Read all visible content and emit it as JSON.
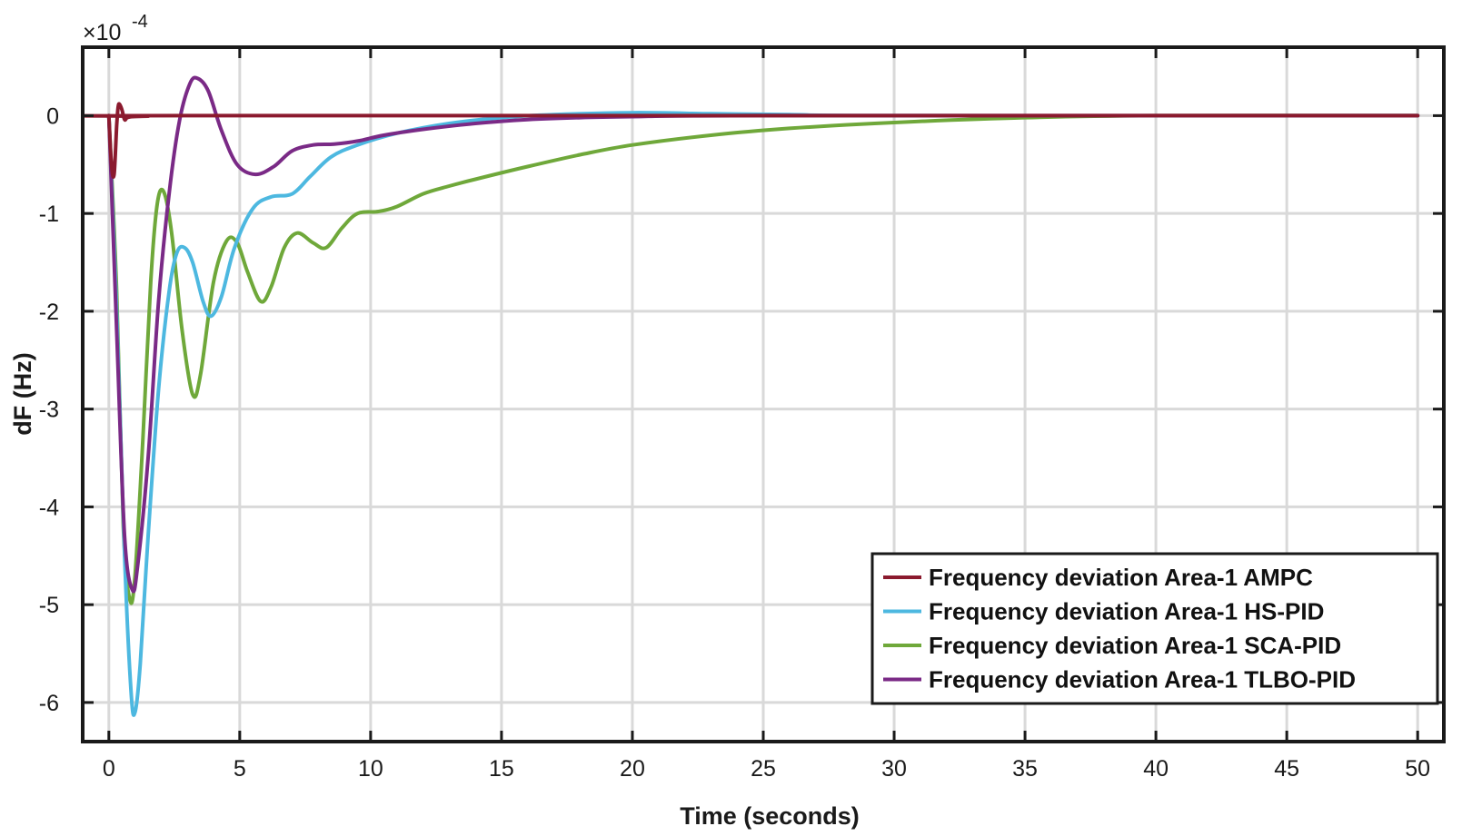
{
  "chart_data": {
    "type": "line",
    "xlabel": "Time (seconds)",
    "ylabel": "dF (Hz)",
    "y_exponent_prefix": "×10",
    "y_exponent": "-4",
    "xlim": [
      -1,
      51
    ],
    "ylim": [
      -6.4,
      0.7
    ],
    "xticks": [
      0,
      5,
      10,
      15,
      20,
      25,
      30,
      35,
      40,
      45,
      50
    ],
    "yticks": [
      0,
      -1,
      -2,
      -3,
      -4,
      -5,
      -6
    ],
    "grid": true,
    "legend_position": "bottom-right",
    "series": [
      {
        "name": "Frequency deviation Area-1 AMPC",
        "color": "#8b1a2e",
        "points": [
          [
            0,
            0
          ],
          [
            0.1,
            -0.5
          ],
          [
            0.2,
            -0.6
          ],
          [
            0.3,
            -0.1
          ],
          [
            0.35,
            0.08
          ],
          [
            0.4,
            0.12
          ],
          [
            0.5,
            0.06
          ],
          [
            0.6,
            -0.04
          ],
          [
            0.7,
            -0.02
          ],
          [
            0.9,
            -0.01
          ],
          [
            1.5,
            -0.005
          ],
          [
            3,
            0
          ],
          [
            50,
            0
          ]
        ]
      },
      {
        "name": "Frequency deviation Area-1 HS-PID",
        "color": "#4db8e0",
        "points": [
          [
            0,
            0
          ],
          [
            0.3,
            -2.0
          ],
          [
            0.6,
            -4.5
          ],
          [
            0.85,
            -5.9
          ],
          [
            1.0,
            -6.1
          ],
          [
            1.2,
            -5.6
          ],
          [
            1.5,
            -4.3
          ],
          [
            1.9,
            -2.8
          ],
          [
            2.3,
            -1.8
          ],
          [
            2.6,
            -1.4
          ],
          [
            2.9,
            -1.35
          ],
          [
            3.2,
            -1.5
          ],
          [
            3.6,
            -1.9
          ],
          [
            3.9,
            -2.05
          ],
          [
            4.3,
            -1.85
          ],
          [
            4.8,
            -1.35
          ],
          [
            5.5,
            -0.95
          ],
          [
            6.2,
            -0.83
          ],
          [
            7.0,
            -0.8
          ],
          [
            7.7,
            -0.62
          ],
          [
            8.5,
            -0.42
          ],
          [
            9.5,
            -0.3
          ],
          [
            11,
            -0.18
          ],
          [
            13,
            -0.08
          ],
          [
            15,
            -0.02
          ],
          [
            17,
            0.01
          ],
          [
            20,
            0.03
          ],
          [
            23,
            0.02
          ],
          [
            26,
            0.01
          ],
          [
            30,
            0
          ],
          [
            50,
            0
          ]
        ]
      },
      {
        "name": "Frequency deviation Area-1 SCA-PID",
        "color": "#6fa83a",
        "points": [
          [
            0,
            0
          ],
          [
            0.3,
            -1.8
          ],
          [
            0.55,
            -4.2
          ],
          [
            0.8,
            -4.95
          ],
          [
            1.0,
            -4.7
          ],
          [
            1.3,
            -3.3
          ],
          [
            1.6,
            -1.7
          ],
          [
            1.85,
            -0.9
          ],
          [
            2.1,
            -0.78
          ],
          [
            2.4,
            -1.2
          ],
          [
            2.8,
            -2.2
          ],
          [
            3.2,
            -2.85
          ],
          [
            3.5,
            -2.65
          ],
          [
            4.0,
            -1.7
          ],
          [
            4.5,
            -1.28
          ],
          [
            4.9,
            -1.3
          ],
          [
            5.3,
            -1.6
          ],
          [
            5.8,
            -1.9
          ],
          [
            6.2,
            -1.75
          ],
          [
            6.7,
            -1.35
          ],
          [
            7.2,
            -1.2
          ],
          [
            7.8,
            -1.3
          ],
          [
            8.3,
            -1.35
          ],
          [
            8.9,
            -1.15
          ],
          [
            9.5,
            -1.0
          ],
          [
            10.3,
            -0.98
          ],
          [
            11,
            -0.93
          ],
          [
            12,
            -0.8
          ],
          [
            13,
            -0.72
          ],
          [
            14,
            -0.65
          ],
          [
            16,
            -0.52
          ],
          [
            18,
            -0.4
          ],
          [
            20,
            -0.3
          ],
          [
            23,
            -0.2
          ],
          [
            26,
            -0.13
          ],
          [
            30,
            -0.07
          ],
          [
            35,
            -0.02
          ],
          [
            40,
            0
          ],
          [
            50,
            0
          ]
        ]
      },
      {
        "name": "Frequency deviation Area-1 TLBO-PID",
        "color": "#7a2a86",
        "points": [
          [
            0,
            0
          ],
          [
            0.3,
            -2.2
          ],
          [
            0.6,
            -4.3
          ],
          [
            0.9,
            -4.85
          ],
          [
            1.1,
            -4.6
          ],
          [
            1.5,
            -3.5
          ],
          [
            1.9,
            -1.9
          ],
          [
            2.3,
            -0.8
          ],
          [
            2.7,
            -0.05
          ],
          [
            3.1,
            0.33
          ],
          [
            3.4,
            0.38
          ],
          [
            3.8,
            0.25
          ],
          [
            4.3,
            -0.15
          ],
          [
            4.9,
            -0.5
          ],
          [
            5.6,
            -0.6
          ],
          [
            6.3,
            -0.52
          ],
          [
            7.0,
            -0.36
          ],
          [
            7.8,
            -0.3
          ],
          [
            8.6,
            -0.29
          ],
          [
            9.5,
            -0.26
          ],
          [
            10.5,
            -0.2
          ],
          [
            12,
            -0.14
          ],
          [
            14,
            -0.08
          ],
          [
            16,
            -0.04
          ],
          [
            18,
            -0.02
          ],
          [
            20,
            -0.01
          ],
          [
            25,
            0
          ],
          [
            50,
            0
          ]
        ]
      }
    ]
  }
}
